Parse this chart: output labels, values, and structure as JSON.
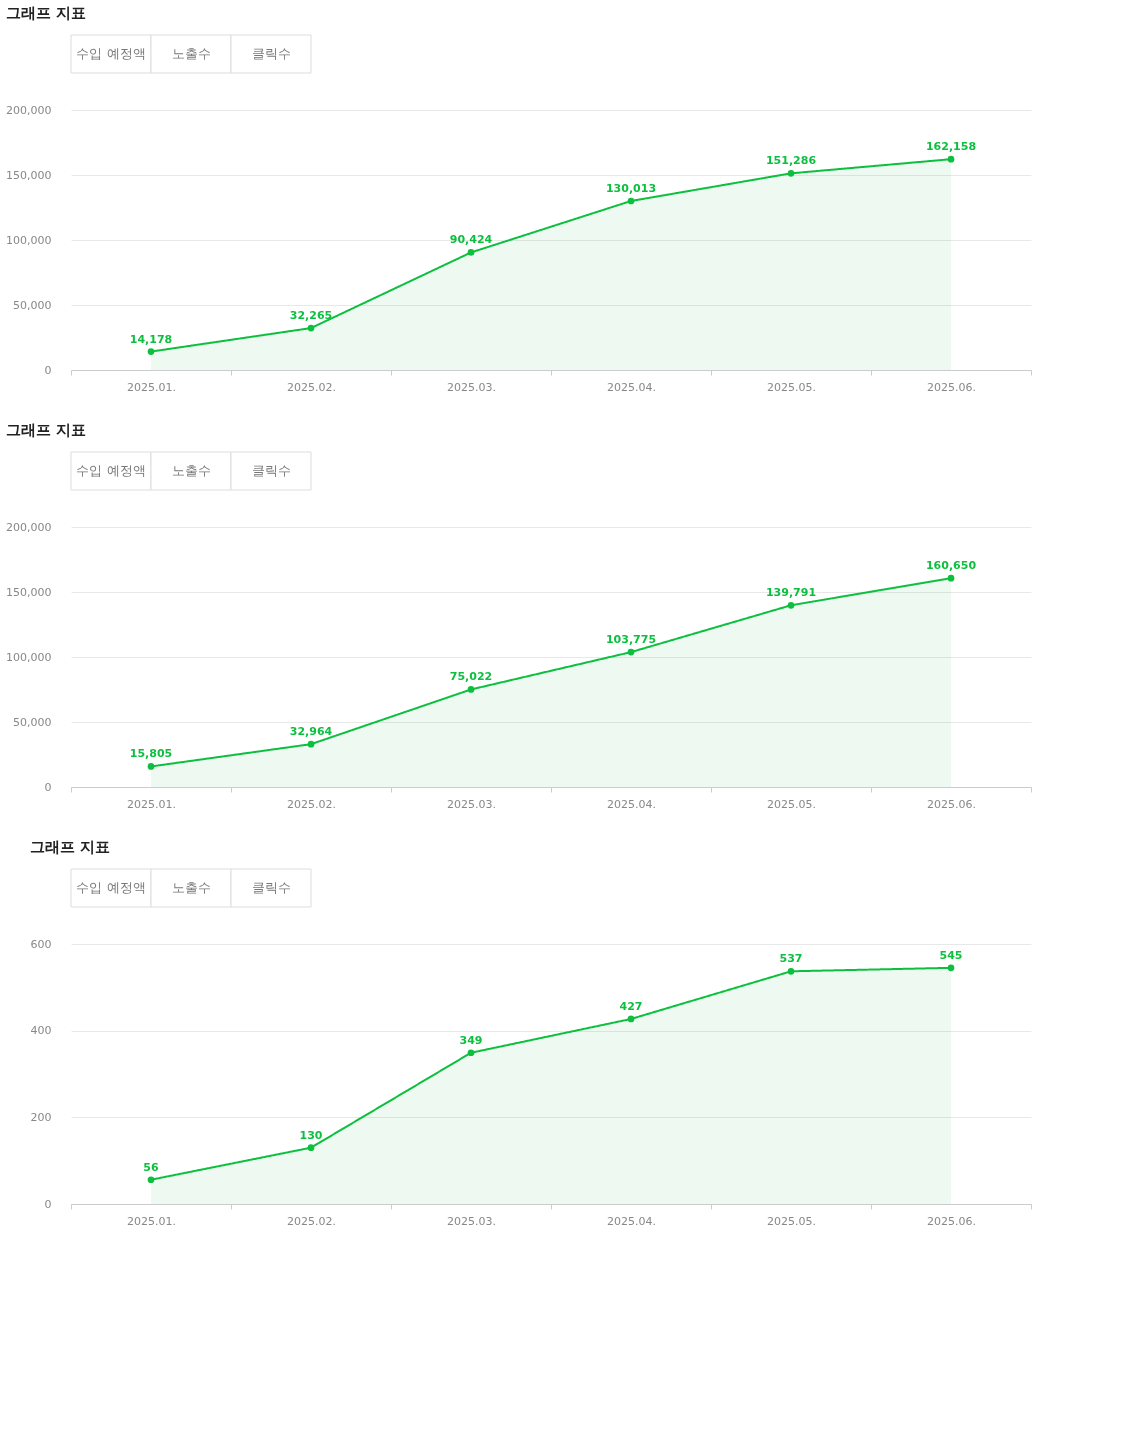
{
  "chart_data": [
    {
      "type": "area",
      "title": "그래프 지표",
      "annotations": [
        "수입 예정액",
        "노출수",
        "클릭수"
      ],
      "categories": [
        "2025.01.",
        "2025.02.",
        "2025.03.",
        "2025.04.",
        "2025.05.",
        "2025.06."
      ],
      "series": [
        {
          "color": "#0dbf3f",
          "values": [
            14178,
            32265,
            90424,
            130013,
            151286,
            162158
          ],
          "value_labels": [
            "14,178",
            "32,265",
            "90,424",
            "130,013",
            "151,286",
            "162,158"
          ]
        }
      ],
      "ylim": [
        0,
        200000
      ],
      "yticks": [
        0,
        {
          "value": 50000,
          "label": "50,000"
        },
        {
          "value": 100000,
          "label": "100,000"
        },
        {
          "value": 150000,
          "label": "150,000"
        },
        {
          "value": 200000,
          "label": "200,000"
        }
      ],
      "grid": "y",
      "marker": "circle"
    },
    {
      "type": "area",
      "title": "그래프 지표",
      "annotations": [
        "수입 예정액",
        "노출수",
        "클릭수"
      ],
      "categories": [
        "2025.01.",
        "2025.02.",
        "2025.03.",
        "2025.04.",
        "2025.05.",
        "2025.06."
      ],
      "series": [
        {
          "color": "#0dbf3f",
          "values": [
            15805,
            32964,
            75022,
            103775,
            139791,
            160650
          ],
          "value_labels": [
            "15,805",
            "32,964",
            "75,022",
            "103,775",
            "139,791",
            "160,650"
          ]
        }
      ],
      "ylim": [
        0,
        200000
      ],
      "yticks": [
        0,
        {
          "value": 50000,
          "label": "50,000"
        },
        {
          "value": 100000,
          "label": "100,000"
        },
        {
          "value": 150000,
          "label": "150,000"
        },
        {
          "value": 200000,
          "label": "200,000"
        }
      ],
      "grid": "y",
      "marker": "circle"
    },
    {
      "type": "area",
      "title": "그래프 지표",
      "annotations": [
        "수입 예정액",
        "노출수",
        "클릭수"
      ],
      "categories": [
        "2025.01.",
        "2025.02.",
        "2025.03.",
        "2025.04.",
        "2025.05.",
        "2025.06."
      ],
      "series": [
        {
          "color": "#0dbf3f",
          "values": [
            56,
            130,
            349,
            427,
            537,
            545
          ]
        }
      ],
      "ylim": [
        0,
        600
      ],
      "yticks": [
        0,
        200,
        400,
        600
      ],
      "grid": "y",
      "marker": "circle",
      "data_labels": true
    }
  ]
}
